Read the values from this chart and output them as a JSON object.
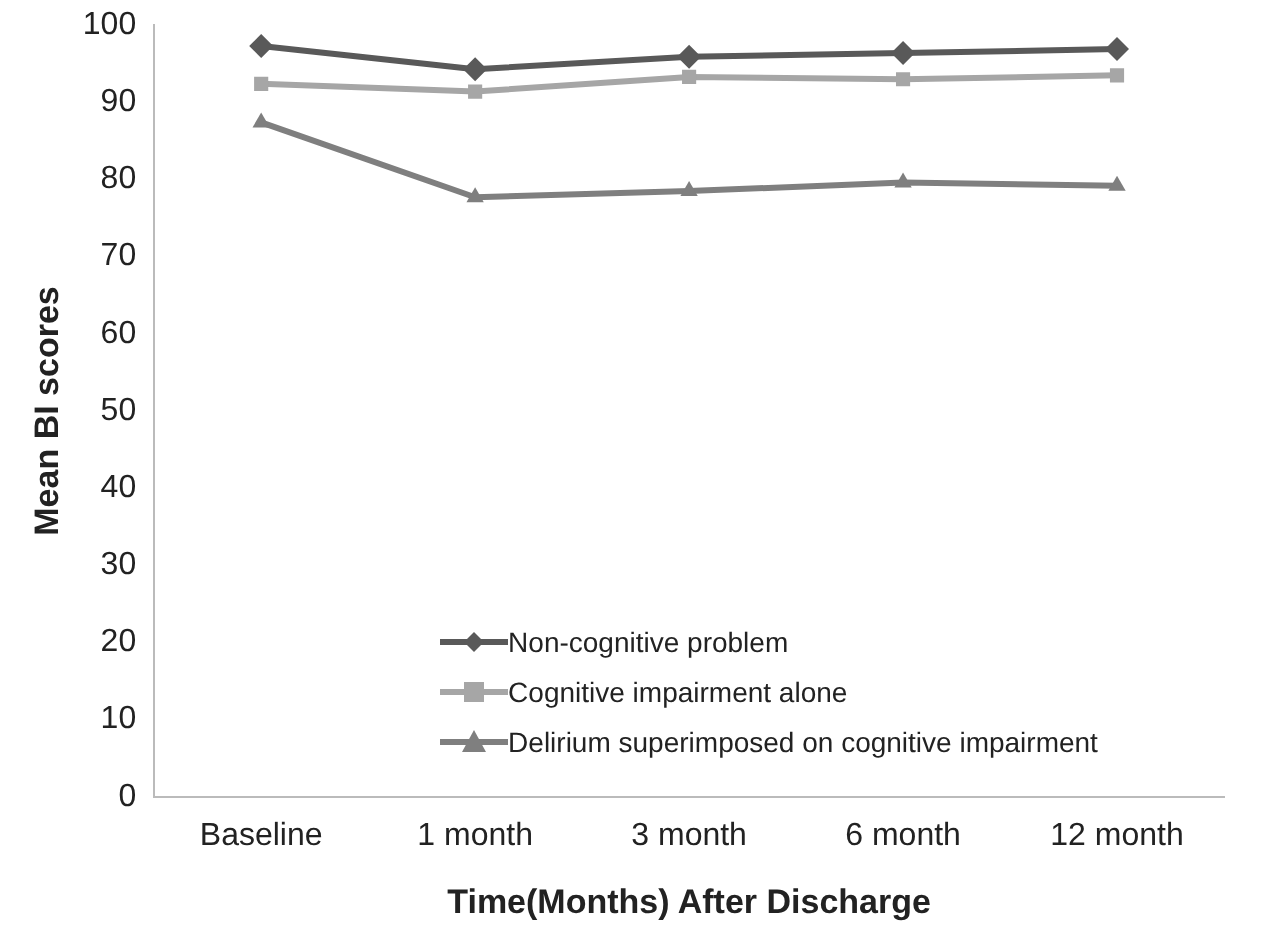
{
  "chart_data": {
    "type": "line",
    "xlabel": "Time(Months) After Discharge",
    "ylabel": "Mean BI scores",
    "categories": [
      "Baseline",
      "1 month",
      "3 month",
      "6 month",
      "12 month"
    ],
    "series": [
      {
        "name": "Non-cognitive problem",
        "color": "#595959",
        "marker": "diamond",
        "values": [
          97.3,
          94.3,
          95.9,
          96.4,
          96.9
        ]
      },
      {
        "name": "Cognitive impairment alone",
        "color": "#a6a6a6",
        "marker": "square",
        "values": [
          92.4,
          91.4,
          93.3,
          93.0,
          93.5
        ]
      },
      {
        "name": "Delirium superimposed on cognitive impairment",
        "color": "#7f7f7f",
        "marker": "triangle",
        "values": [
          87.4,
          77.7,
          78.5,
          79.6,
          79.2
        ]
      }
    ],
    "ylim": [
      0,
      100
    ],
    "yticks": [
      0,
      10,
      20,
      30,
      40,
      50,
      60,
      70,
      80,
      90,
      100
    ],
    "grid": false,
    "legend": "bottom"
  }
}
